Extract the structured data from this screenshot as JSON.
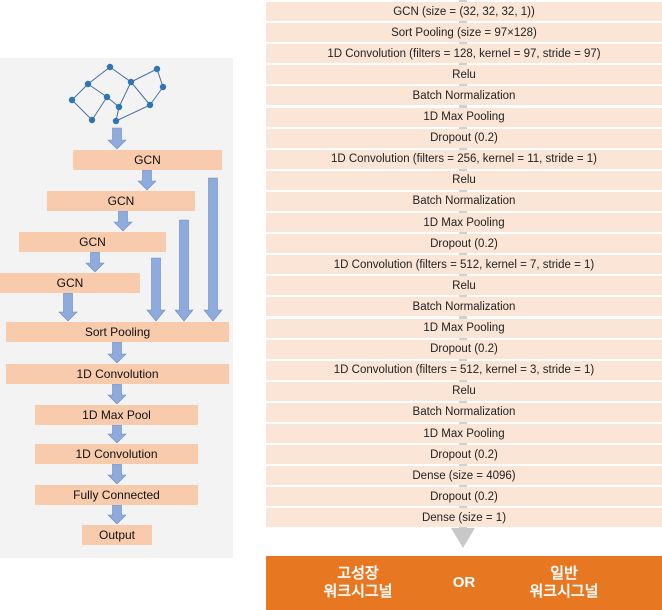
{
  "left_flow": {
    "gcn_labels": [
      "GCN",
      "GCN",
      "GCN",
      "GCN"
    ],
    "sort_pooling": "Sort Pooling",
    "conv1": "1D Convolution",
    "maxpool": "1D Max Pool",
    "conv2": "1D Convolution",
    "fully_connected": "Fully Connected",
    "output": "Output"
  },
  "right_layers": [
    "GCN (size = (32, 32, 32, 1))",
    "Sort Pooling (size = 97×128)",
    "1D Convolution (filters = 128, kernel = 97, stride = 97)",
    "Relu",
    "Batch Normalization",
    "1D Max Pooling",
    "Dropout (0.2)",
    "1D Convolution (filters = 256, kernel = 11, stride = 1)",
    "Relu",
    "Batch Normalization",
    "1D Max Pooling",
    "Dropout (0.2)",
    "1D Convolution (filters = 512, kernel = 7, stride = 1)",
    "Relu",
    "Batch Normalization",
    "1D Max Pooling",
    "Dropout (0.2)",
    "1D Convolution (filters = 512, kernel = 3, stride = 1)",
    "Relu",
    "Batch Normalization",
    "1D Max Pooling",
    "Dropout (0.2)",
    "Dense (size = 4096)",
    "Dropout (0.2)",
    "Dense (size = 1)"
  ],
  "output_classes": {
    "left_line1": "고성장",
    "left_line2": "워크시그널",
    "or": "OR",
    "right_line1": "일반",
    "right_line2": "워크시그널"
  },
  "colors": {
    "left_box": "#f8cbad",
    "right_box": "#fbe5d6",
    "arrow": "#8faadc",
    "output": "#e87722"
  }
}
